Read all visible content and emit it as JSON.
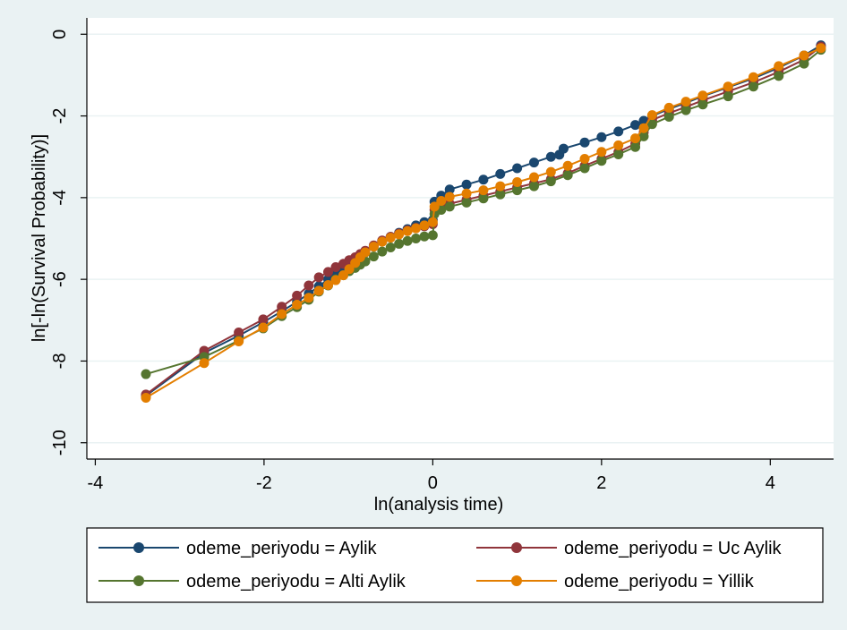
{
  "chart_data": {
    "type": "line",
    "xlabel": "ln(analysis time)",
    "ylabel": "ln[-ln(Survival Probability)]",
    "xlim": [
      -4.1,
      4.75
    ],
    "ylim": [
      -10.4,
      0.4
    ],
    "x_ticks": [
      -4,
      -2,
      0,
      2,
      4
    ],
    "y_ticks": [
      0,
      -2,
      -4,
      -6,
      -8,
      -10
    ],
    "x_tick_labels": [
      "-4",
      "-2",
      "0",
      "2",
      "4"
    ],
    "y_tick_labels": [
      "0",
      "-2",
      "-4",
      "-6",
      "-8",
      "-10"
    ],
    "grid": "horizontal",
    "legend_position": "bottom",
    "series": [
      {
        "name": "odeme_periyodu = Aylik",
        "color": "#1a476f",
        "x": [
          -3.4,
          -2.71,
          -2.3,
          -2.01,
          -1.79,
          -1.61,
          -1.47,
          -1.35,
          -1.24,
          -1.15,
          -1.06,
          -0.99,
          -0.92,
          -0.86,
          -0.8,
          -0.7,
          -0.6,
          -0.5,
          -0.4,
          -0.3,
          -0.2,
          -0.1,
          0.0,
          0.02,
          0.1,
          0.2,
          0.4,
          0.6,
          0.8,
          1.0,
          1.2,
          1.4,
          1.5,
          1.55,
          1.8,
          2.0,
          2.2,
          2.4,
          2.5,
          2.6,
          2.8,
          3.0,
          3.2,
          3.5,
          3.8,
          4.1,
          4.4,
          4.6
        ],
        "y": [
          -8.85,
          -7.8,
          -7.38,
          -7.05,
          -6.78,
          -6.55,
          -6.35,
          -6.17,
          -6.0,
          -5.86,
          -5.73,
          -5.62,
          -5.52,
          -5.43,
          -5.34,
          -5.2,
          -5.07,
          -4.96,
          -4.86,
          -4.77,
          -4.68,
          -4.6,
          -4.55,
          -4.1,
          -3.95,
          -3.8,
          -3.68,
          -3.56,
          -3.42,
          -3.28,
          -3.14,
          -3.0,
          -2.95,
          -2.8,
          -2.65,
          -2.52,
          -2.38,
          -2.22,
          -2.12,
          -2.0,
          -1.83,
          -1.68,
          -1.52,
          -1.3,
          -1.08,
          -0.82,
          -0.52,
          -0.27
        ]
      },
      {
        "name": "odeme_periyodu = Uc Aylik",
        "color": "#90353b",
        "x": [
          -3.4,
          -2.71,
          -2.3,
          -2.01,
          -1.79,
          -1.61,
          -1.47,
          -1.35,
          -1.24,
          -1.15,
          -1.06,
          -0.99,
          -0.92,
          -0.86,
          -0.8,
          -0.7,
          -0.6,
          -0.5,
          -0.4,
          -0.3,
          -0.2,
          -0.1,
          0.0,
          0.02,
          0.1,
          0.2,
          0.4,
          0.6,
          0.8,
          1.0,
          1.2,
          1.4,
          1.6,
          1.8,
          2.0,
          2.2,
          2.4,
          2.5,
          2.6,
          2.8,
          3.0,
          3.2,
          3.5,
          3.8,
          4.1,
          4.4,
          4.6
        ],
        "y": [
          -8.82,
          -7.75,
          -7.3,
          -6.98,
          -6.67,
          -6.4,
          -6.15,
          -5.95,
          -5.82,
          -5.7,
          -5.62,
          -5.53,
          -5.46,
          -5.38,
          -5.3,
          -5.17,
          -5.05,
          -4.96,
          -4.88,
          -4.8,
          -4.74,
          -4.7,
          -4.65,
          -4.3,
          -4.22,
          -4.15,
          -4.05,
          -3.95,
          -3.85,
          -3.75,
          -3.65,
          -3.55,
          -3.4,
          -3.22,
          -3.05,
          -2.88,
          -2.68,
          -2.4,
          -2.1,
          -1.93,
          -1.78,
          -1.62,
          -1.4,
          -1.18,
          -0.92,
          -0.62,
          -0.3
        ]
      },
      {
        "name": "odeme_periyodu = Alti Aylik",
        "color": "#55752f",
        "x": [
          -3.4,
          -2.71,
          -2.3,
          -2.01,
          -1.79,
          -1.61,
          -1.47,
          -1.35,
          -1.24,
          -1.15,
          -1.06,
          -0.99,
          -0.92,
          -0.86,
          -0.8,
          -0.7,
          -0.6,
          -0.5,
          -0.4,
          -0.3,
          -0.2,
          -0.1,
          0.0,
          0.02,
          0.1,
          0.2,
          0.4,
          0.6,
          0.8,
          1.0,
          1.2,
          1.4,
          1.6,
          1.8,
          2.0,
          2.2,
          2.4,
          2.5,
          2.6,
          2.8,
          3.0,
          3.2,
          3.5,
          3.8,
          4.1,
          4.4,
          4.6
        ],
        "y": [
          -8.32,
          -7.9,
          -7.5,
          -7.2,
          -6.9,
          -6.68,
          -6.5,
          -6.3,
          -6.15,
          -6.0,
          -5.9,
          -5.8,
          -5.72,
          -5.64,
          -5.56,
          -5.44,
          -5.32,
          -5.22,
          -5.13,
          -5.06,
          -5.0,
          -4.95,
          -4.92,
          -4.4,
          -4.3,
          -4.22,
          -4.12,
          -4.02,
          -3.92,
          -3.82,
          -3.72,
          -3.6,
          -3.45,
          -3.28,
          -3.1,
          -2.94,
          -2.76,
          -2.5,
          -2.2,
          -2.02,
          -1.86,
          -1.72,
          -1.52,
          -1.28,
          -1.02,
          -0.72,
          -0.38
        ]
      },
      {
        "name": "odeme_periyodu = Yillik",
        "color": "#e37e00",
        "x": [
          -3.4,
          -2.71,
          -2.3,
          -2.01,
          -1.79,
          -1.61,
          -1.47,
          -1.35,
          -1.24,
          -1.15,
          -1.06,
          -0.99,
          -0.92,
          -0.86,
          -0.8,
          -0.7,
          -0.6,
          -0.5,
          -0.4,
          -0.3,
          -0.2,
          -0.1,
          0.0,
          0.02,
          0.1,
          0.2,
          0.4,
          0.6,
          0.8,
          1.0,
          1.2,
          1.4,
          1.6,
          1.8,
          2.0,
          2.2,
          2.4,
          2.5,
          2.6,
          2.8,
          3.0,
          3.2,
          3.5,
          3.8,
          4.1,
          4.4,
          4.6
        ],
        "y": [
          -8.9,
          -8.05,
          -7.52,
          -7.18,
          -6.85,
          -6.62,
          -6.45,
          -6.28,
          -6.14,
          -6.02,
          -5.9,
          -5.75,
          -5.6,
          -5.46,
          -5.34,
          -5.2,
          -5.08,
          -4.98,
          -4.9,
          -4.82,
          -4.75,
          -4.68,
          -4.6,
          -4.22,
          -4.08,
          -3.98,
          -3.9,
          -3.82,
          -3.72,
          -3.62,
          -3.5,
          -3.37,
          -3.22,
          -3.05,
          -2.88,
          -2.72,
          -2.55,
          -2.3,
          -1.98,
          -1.8,
          -1.65,
          -1.5,
          -1.28,
          -1.05,
          -0.78,
          -0.52,
          -0.34
        ]
      }
    ]
  }
}
